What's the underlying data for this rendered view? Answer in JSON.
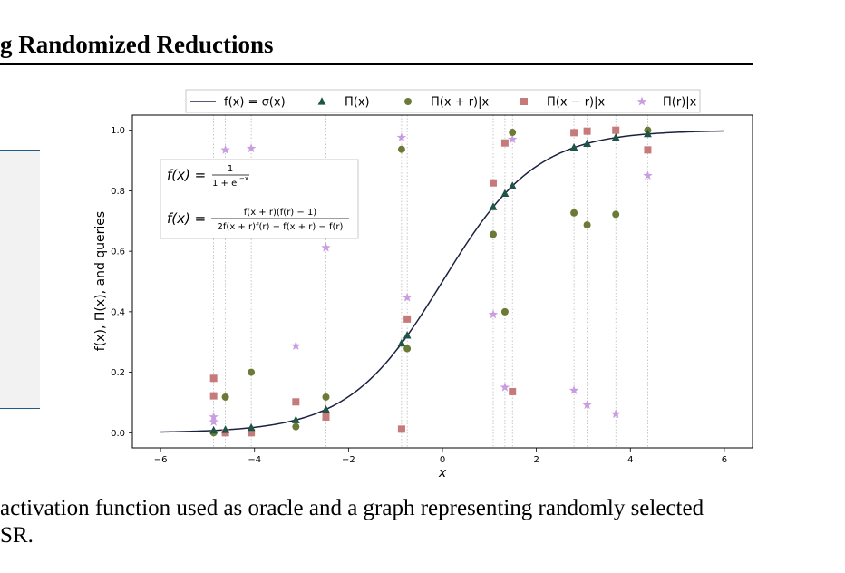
{
  "page": {
    "heading": "g Randomized Reductions",
    "caption_line1": "activation function used as oracle and a graph representing randomly selected",
    "caption_line2": "SR."
  },
  "chart_data": {
    "type": "scatter",
    "xlabel": "x",
    "ylabel": "f(x), Π(x), and queries",
    "xlim": [
      -6.6,
      6.6
    ],
    "ylim": [
      -0.05,
      1.05
    ],
    "xticks": [
      -6,
      -4,
      -2,
      0,
      2,
      4,
      6
    ],
    "xtick_labels": [
      "−6",
      "−4",
      "−2",
      "0",
      "2",
      "4",
      "6"
    ],
    "yticks": [
      0.0,
      0.2,
      0.4,
      0.6,
      0.8,
      1.0
    ],
    "ytick_labels": [
      "0.0",
      "0.2",
      "0.4",
      "0.6",
      "0.8",
      "1.0"
    ],
    "grid": "vertical dotted lines at sampled x",
    "legend_position": "top",
    "formula_box": {
      "f1_lhs": "f(x) =",
      "f1_num": "1",
      "f1_den": "1 + e",
      "f1_exp": "−x",
      "f2_lhs": "f(x) =",
      "f2_num": "f(x + r)(f(r) − 1)",
      "f2_den": "2f(x + r)f(r) − f(x + r) − f(r)"
    },
    "sample_x": [
      -4.87,
      -4.62,
      -4.07,
      -3.12,
      -2.48,
      -0.87,
      -0.75,
      1.08,
      1.33,
      1.49,
      2.8,
      3.08,
      3.69,
      4.37
    ],
    "series": [
      {
        "name": "f(x) = σ(x)",
        "kind": "line",
        "color": "#1b2240",
        "function": "sigmoid",
        "x_range": [
          -6,
          6
        ]
      },
      {
        "name": "Π(x)",
        "kind": "triangle",
        "color": "#1f5546",
        "points": [
          [
            -4.87,
            0.008
          ],
          [
            -4.62,
            0.01
          ],
          [
            -4.07,
            0.017
          ],
          [
            -3.12,
            0.042
          ],
          [
            -2.48,
            0.077
          ],
          [
            -0.87,
            0.296
          ],
          [
            -0.75,
            0.322
          ],
          [
            1.08,
            0.747
          ],
          [
            1.33,
            0.791
          ],
          [
            1.49,
            0.816
          ],
          [
            2.8,
            0.943
          ],
          [
            3.08,
            0.956
          ],
          [
            3.69,
            0.976
          ],
          [
            4.37,
            0.988
          ]
        ]
      },
      {
        "name": "Π(x + r)|x",
        "kind": "circle",
        "color": "#6b7a35",
        "points": [
          [
            -4.87,
            0.0
          ],
          [
            -4.62,
            0.118
          ],
          [
            -4.07,
            0.2
          ],
          [
            -3.12,
            0.02
          ],
          [
            -2.48,
            0.118
          ],
          [
            -0.87,
            0.937
          ],
          [
            -0.75,
            0.278
          ],
          [
            1.08,
            0.656
          ],
          [
            1.33,
            0.4
          ],
          [
            1.49,
            0.993
          ],
          [
            2.8,
            0.727
          ],
          [
            3.08,
            0.687
          ],
          [
            3.69,
            0.722
          ],
          [
            4.37,
            1.0
          ]
        ]
      },
      {
        "name": "Π(x − r)|x",
        "kind": "square",
        "color": "#c67a7a",
        "points": [
          [
            -4.87,
            0.18
          ],
          [
            -4.87,
            0.122
          ],
          [
            -4.62,
            0.0
          ],
          [
            -4.07,
            0.0
          ],
          [
            -3.12,
            0.102
          ],
          [
            -2.48,
            0.052
          ],
          [
            -0.87,
            0.012
          ],
          [
            -0.75,
            0.376
          ],
          [
            1.08,
            0.826
          ],
          [
            1.33,
            0.958
          ],
          [
            1.49,
            0.136
          ],
          [
            2.8,
            0.992
          ],
          [
            3.08,
            0.997
          ],
          [
            3.69,
            1.0
          ],
          [
            4.37,
            0.935
          ]
        ]
      },
      {
        "name": "Π(r)|x",
        "kind": "star",
        "color": "#c99ee0",
        "points": [
          [
            -4.87,
            0.052
          ],
          [
            -4.87,
            0.036
          ],
          [
            -4.62,
            0.935
          ],
          [
            -4.07,
            0.94
          ],
          [
            -3.12,
            0.287
          ],
          [
            -2.48,
            0.612
          ],
          [
            -0.87,
            0.976
          ],
          [
            -0.75,
            0.447
          ],
          [
            1.08,
            0.391
          ],
          [
            1.33,
            0.15
          ],
          [
            1.49,
            0.97
          ],
          [
            2.8,
            0.14
          ],
          [
            3.08,
            0.092
          ],
          [
            3.69,
            0.062
          ],
          [
            4.37,
            0.85
          ]
        ]
      }
    ]
  }
}
